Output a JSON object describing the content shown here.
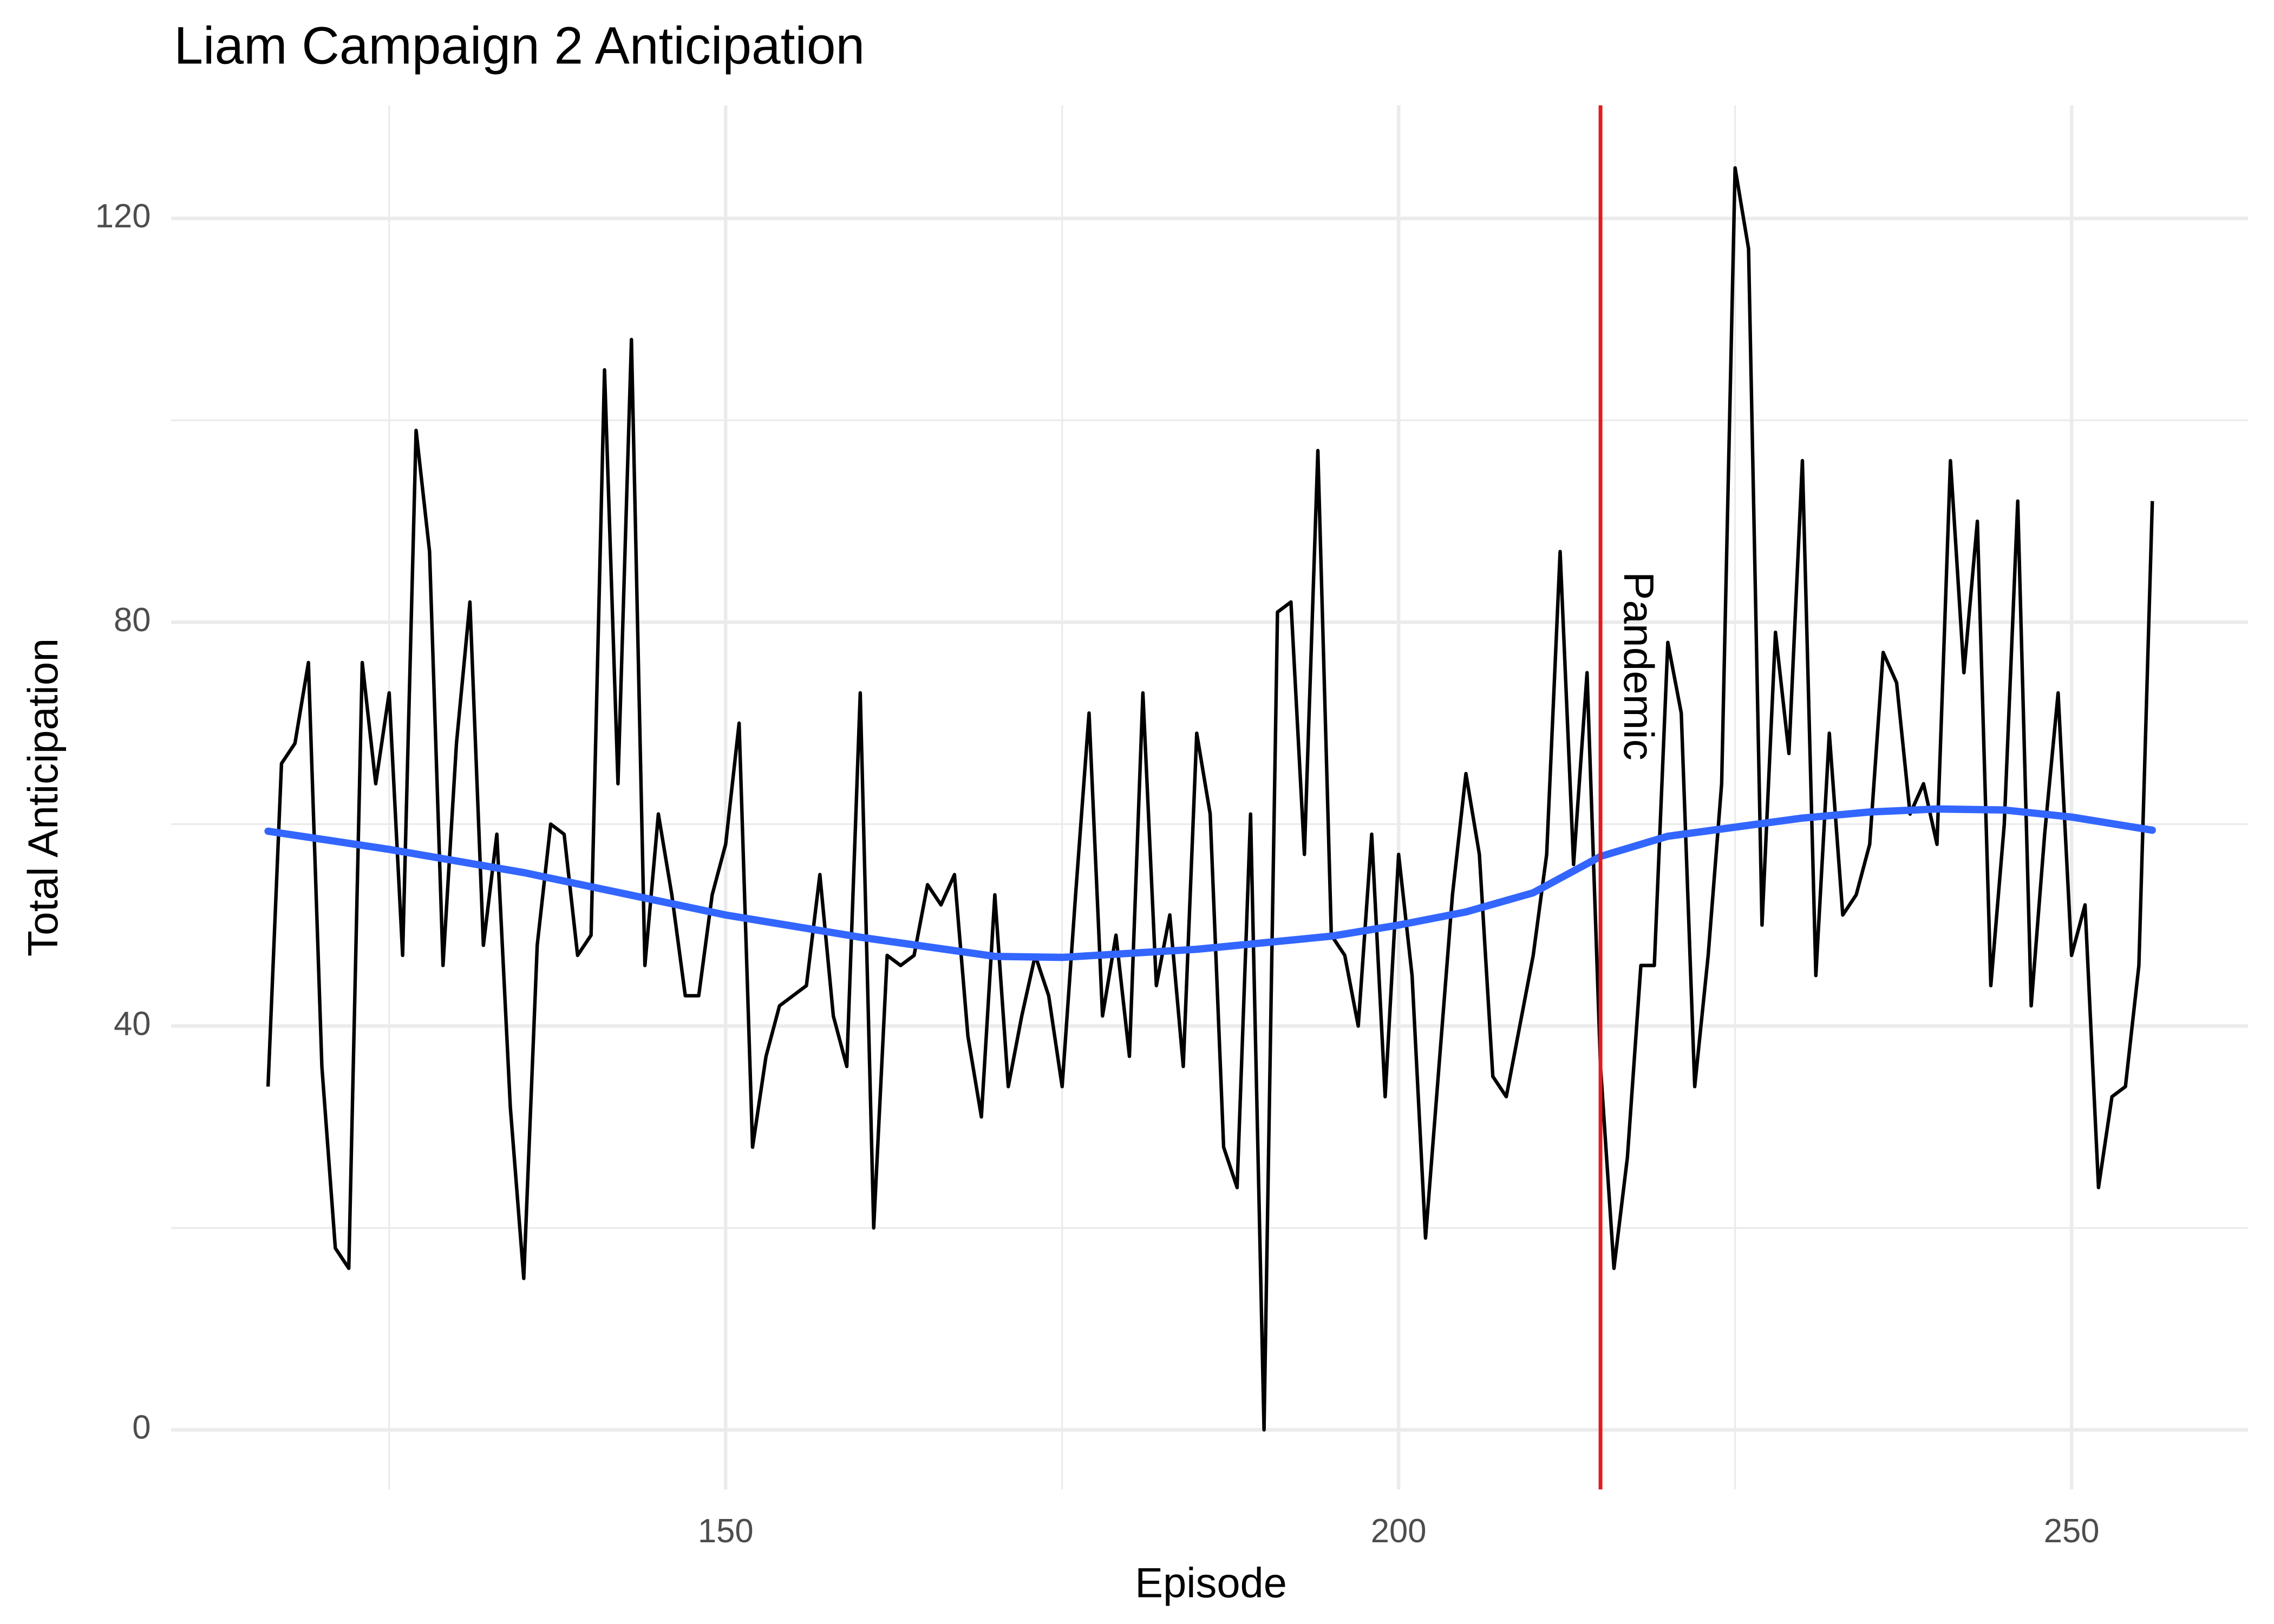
{
  "chart_data": {
    "type": "line",
    "title": "Liam Campaign 2 Anticipation",
    "x_label": "Episode",
    "y_label": "Total Anticipation",
    "color": "#000000",
    "x": [
      116,
      117,
      118,
      119,
      120,
      121,
      122,
      123,
      124,
      125,
      126,
      127,
      128,
      129,
      130,
      131,
      132,
      133,
      134,
      135,
      136,
      137,
      138,
      139,
      140,
      141,
      142,
      143,
      144,
      145,
      146,
      147,
      148,
      149,
      150,
      151,
      152,
      153,
      154,
      155,
      156,
      157,
      158,
      159,
      160,
      161,
      162,
      163,
      164,
      165,
      166,
      167,
      168,
      169,
      170,
      171,
      172,
      173,
      174,
      175,
      176,
      177,
      178,
      179,
      180,
      181,
      182,
      183,
      184,
      185,
      186,
      187,
      188,
      189,
      190,
      191,
      192,
      193,
      194,
      195,
      196,
      197,
      198,
      199,
      200,
      201,
      202,
      203,
      204,
      205,
      206,
      207,
      208,
      209,
      210,
      211,
      212,
      213,
      214,
      215,
      216,
      217,
      218,
      219,
      220,
      221,
      222,
      223,
      224,
      225,
      226,
      227,
      228,
      229,
      230,
      231,
      232,
      233,
      234,
      235,
      236,
      237,
      238,
      239,
      240,
      241,
      242,
      243,
      244,
      245,
      246,
      247,
      248,
      249,
      250,
      251,
      252,
      253,
      254,
      255,
      256
    ],
    "values": [
      34,
      66,
      68,
      76,
      36,
      18,
      16,
      76,
      64,
      73,
      47,
      99,
      87,
      46,
      68,
      82,
      48,
      59,
      32,
      15,
      48,
      60,
      59,
      47,
      49,
      105,
      64,
      108,
      46,
      61,
      53,
      43,
      43,
      53,
      58,
      70,
      28,
      37,
      42,
      43,
      44,
      55,
      41,
      36,
      73,
      20,
      47,
      46,
      47,
      54,
      52,
      55,
      39,
      31,
      53,
      34,
      41,
      47,
      43,
      34,
      53,
      71,
      41,
      49,
      37,
      73,
      44,
      51,
      36,
      69,
      61,
      28,
      24,
      61,
      0,
      81,
      82,
      57,
      97,
      49,
      47,
      40,
      59,
      33,
      57,
      45,
      19,
      36,
      53,
      65,
      57,
      35,
      33,
      40,
      47,
      57,
      87,
      56,
      75,
      36,
      16,
      27,
      46,
      46,
      78,
      71,
      34,
      47,
      64,
      125,
      117,
      50,
      79,
      67,
      96,
      45,
      69,
      51,
      53,
      58,
      77,
      74,
      61,
      64,
      58,
      96,
      75,
      90,
      44,
      60,
      92,
      42,
      59,
      73,
      47,
      52,
      24,
      33,
      34,
      46,
      92
    ],
    "smooth": {
      "color": "#3366ff",
      "x": [
        116,
        125,
        135,
        150,
        160,
        170,
        175,
        185,
        195,
        200,
        205,
        210,
        215,
        220,
        225,
        230,
        235,
        240,
        245,
        250,
        256
      ],
      "values": [
        59.3,
        57.5,
        55.2,
        51,
        48.8,
        46.9,
        46.8,
        47.6,
        48.9,
        50,
        51.3,
        53.2,
        56.8,
        58.8,
        59.7,
        60.6,
        61.2,
        61.5,
        61.4,
        60.7,
        59.4
      ]
    },
    "vline": {
      "x": 215,
      "label": "Pandemic",
      "color": "#e41a1c"
    },
    "xlim": [
      108.8,
      263.1
    ],
    "ylim": [
      -5.9,
      131.2
    ],
    "xticks": [
      150,
      200,
      250
    ],
    "yticks": [
      0,
      40,
      80,
      120
    ],
    "minor_xticks": [
      125,
      175,
      225
    ],
    "minor_yticks": [
      20,
      60,
      100
    ],
    "grid": true
  }
}
